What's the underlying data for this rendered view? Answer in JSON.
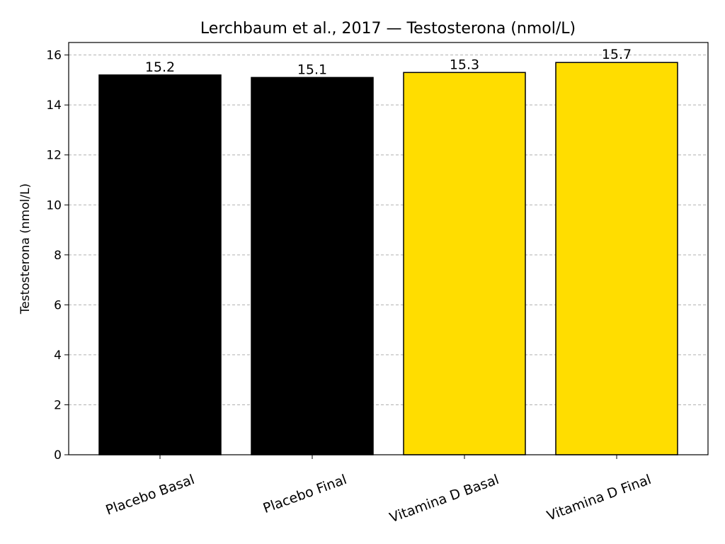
{
  "chart_data": {
    "type": "bar",
    "title": "Lerchbaum et al., 2017 — Testosterona (nmol/L)",
    "y_label": "Testosterona (nmol/L)",
    "categories": [
      "Placebo Basal",
      "Placebo Final",
      "Vitamina D Basal",
      "Vitamina D Final"
    ],
    "values": [
      15.2,
      15.1,
      15.3,
      15.7
    ],
    "colors": [
      "#000000",
      "#000000",
      "#ffdd00",
      "#ffdd00"
    ],
    "edge_color": "#000000",
    "ylim": [
      0,
      16.5
    ],
    "yticks": [
      0,
      2,
      4,
      6,
      8,
      10,
      12,
      14,
      16
    ],
    "grid": true
  }
}
